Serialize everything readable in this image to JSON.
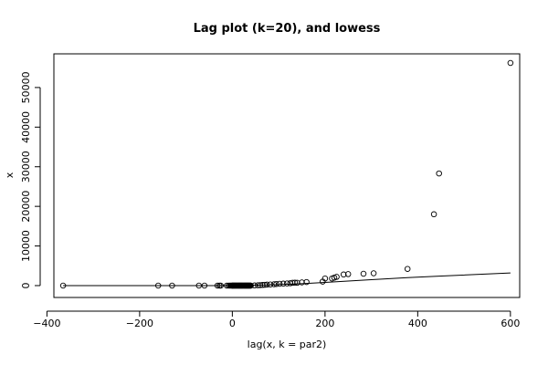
{
  "chart_data": {
    "type": "scatter",
    "title": "Lag plot (k=20), and lowess",
    "xlabel": "lag(x, k = par2)",
    "ylabel": "x",
    "xlim": [
      -385,
      620
    ],
    "ylim": [
      -3000,
      58500
    ],
    "x_ticks": [
      -400,
      -200,
      0,
      200,
      400,
      600
    ],
    "y_ticks": [
      0,
      10000,
      20000,
      30000,
      40000,
      50000
    ],
    "grid": false,
    "points": [
      {
        "x": -365,
        "y": 0
      },
      {
        "x": -160,
        "y": 0
      },
      {
        "x": -130,
        "y": 0
      },
      {
        "x": -72,
        "y": 0
      },
      {
        "x": -60,
        "y": 0
      },
      {
        "x": -32,
        "y": 0
      },
      {
        "x": -28,
        "y": 0
      },
      {
        "x": -25,
        "y": 0
      },
      {
        "x": -12,
        "y": 0
      },
      {
        "x": -8,
        "y": 0
      },
      {
        "x": -5,
        "y": 0
      },
      {
        "x": -3,
        "y": 0
      },
      {
        "x": -1,
        "y": 0
      },
      {
        "x": 0,
        "y": 0
      },
      {
        "x": 1,
        "y": 0
      },
      {
        "x": 2,
        "y": 0
      },
      {
        "x": 3,
        "y": 0
      },
      {
        "x": 4,
        "y": 0
      },
      {
        "x": 5,
        "y": 0
      },
      {
        "x": 6,
        "y": 0
      },
      {
        "x": 7,
        "y": 0
      },
      {
        "x": 8,
        "y": 0
      },
      {
        "x": 9,
        "y": 0
      },
      {
        "x": 10,
        "y": 0
      },
      {
        "x": 11,
        "y": 0
      },
      {
        "x": 12,
        "y": 0
      },
      {
        "x": 13,
        "y": 0
      },
      {
        "x": 14,
        "y": 0
      },
      {
        "x": 15,
        "y": 0
      },
      {
        "x": 16,
        "y": 0
      },
      {
        "x": 17,
        "y": 0
      },
      {
        "x": 18,
        "y": 0
      },
      {
        "x": 19,
        "y": 0
      },
      {
        "x": 20,
        "y": 0
      },
      {
        "x": 21,
        "y": 0
      },
      {
        "x": 22,
        "y": 0
      },
      {
        "x": 23,
        "y": 0
      },
      {
        "x": 24,
        "y": 0
      },
      {
        "x": 25,
        "y": 0
      },
      {
        "x": 26,
        "y": 0
      },
      {
        "x": 27,
        "y": 0
      },
      {
        "x": 28,
        "y": 0
      },
      {
        "x": 29,
        "y": 0
      },
      {
        "x": 30,
        "y": 0
      },
      {
        "x": 31,
        "y": 0
      },
      {
        "x": 32,
        "y": 0
      },
      {
        "x": 33,
        "y": 0
      },
      {
        "x": 34,
        "y": 0
      },
      {
        "x": 35,
        "y": 0
      },
      {
        "x": 36,
        "y": 0
      },
      {
        "x": 37,
        "y": 0
      },
      {
        "x": 38,
        "y": 0
      },
      {
        "x": 39,
        "y": 0
      },
      {
        "x": 40,
        "y": 0
      },
      {
        "x": 48,
        "y": 50
      },
      {
        "x": 55,
        "y": 80
      },
      {
        "x": 60,
        "y": 100
      },
      {
        "x": 65,
        "y": 150
      },
      {
        "x": 70,
        "y": 200
      },
      {
        "x": 75,
        "y": 250
      },
      {
        "x": 82,
        "y": 300
      },
      {
        "x": 90,
        "y": 350
      },
      {
        "x": 95,
        "y": 400
      },
      {
        "x": 102,
        "y": 450
      },
      {
        "x": 110,
        "y": 500
      },
      {
        "x": 118,
        "y": 550
      },
      {
        "x": 125,
        "y": 600
      },
      {
        "x": 130,
        "y": 700
      },
      {
        "x": 135,
        "y": 750
      },
      {
        "x": 140,
        "y": 700
      },
      {
        "x": 150,
        "y": 800
      },
      {
        "x": 160,
        "y": 900
      },
      {
        "x": 195,
        "y": 1000
      },
      {
        "x": 200,
        "y": 1800
      },
      {
        "x": 215,
        "y": 1800
      },
      {
        "x": 220,
        "y": 2000
      },
      {
        "x": 225,
        "y": 2200
      },
      {
        "x": 240,
        "y": 2800
      },
      {
        "x": 250,
        "y": 2900
      },
      {
        "x": 283,
        "y": 3000
      },
      {
        "x": 305,
        "y": 3100
      },
      {
        "x": 378,
        "y": 4200
      },
      {
        "x": 435,
        "y": 18000
      },
      {
        "x": 446,
        "y": 28300
      },
      {
        "x": 600,
        "y": 56200
      }
    ],
    "lowess": {
      "x": [
        -365,
        -160,
        -60,
        0,
        60,
        100,
        160,
        200,
        250,
        300,
        378,
        446,
        600
      ],
      "y": [
        0,
        0,
        0,
        0,
        100,
        250,
        550,
        800,
        1150,
        1500,
        2000,
        2400,
        3200
      ]
    }
  }
}
